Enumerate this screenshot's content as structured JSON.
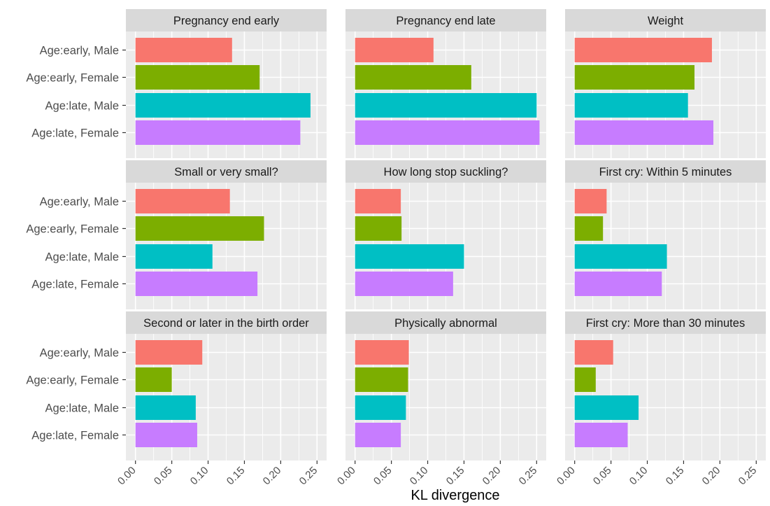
{
  "chart_data": {
    "type": "bar",
    "orientation": "horizontal",
    "layout": "facet_wrap 3x3",
    "xlabel": "KL divergence",
    "ylabel": "",
    "xlim": [
      0,
      0.25
    ],
    "x_ticks": [
      "0.00",
      "0.05",
      "0.10",
      "0.15",
      "0.20",
      "0.25"
    ],
    "grid": true,
    "legend": "none",
    "categories": [
      "Age:early, Male",
      "Age:early, Female",
      "Age:late, Male",
      "Age:late, Female"
    ],
    "category_colors": [
      "#F8766D",
      "#7CAE00",
      "#00BFC4",
      "#C77CFF"
    ],
    "facets": [
      {
        "title": "Pregnancy end early",
        "values": [
          0.133,
          0.171,
          0.241,
          0.227
        ]
      },
      {
        "title": "Pregnancy end late",
        "values": [
          0.108,
          0.16,
          0.25,
          0.254
        ]
      },
      {
        "title": "Weight",
        "values": [
          0.189,
          0.165,
          0.156,
          0.191
        ]
      },
      {
        "title": "Small or very small?",
        "values": [
          0.13,
          0.177,
          0.106,
          0.168
        ]
      },
      {
        "title": "How long stop suckling?",
        "values": [
          0.063,
          0.064,
          0.15,
          0.135
        ]
      },
      {
        "title": "First cry: Within 5 minutes",
        "values": [
          0.044,
          0.039,
          0.127,
          0.12
        ]
      },
      {
        "title": "Second or later in the birth order",
        "values": [
          0.092,
          0.05,
          0.083,
          0.085
        ]
      },
      {
        "title": "Physically abnormal",
        "values": [
          0.074,
          0.073,
          0.07,
          0.063
        ]
      },
      {
        "title": "First cry: More than 30 minutes",
        "values": [
          0.053,
          0.029,
          0.088,
          0.073
        ]
      }
    ]
  }
}
